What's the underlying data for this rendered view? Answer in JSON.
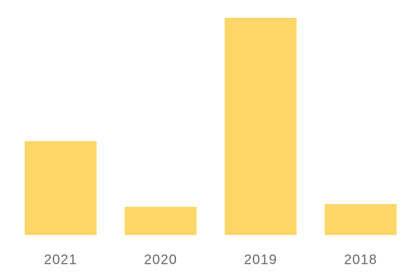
{
  "chart_data": {
    "type": "bar",
    "categories": [
      "2021",
      "2020",
      "2019",
      "2018"
    ],
    "values": [
      137,
      41,
      317,
      45
    ],
    "color": "#fed66a"
  }
}
